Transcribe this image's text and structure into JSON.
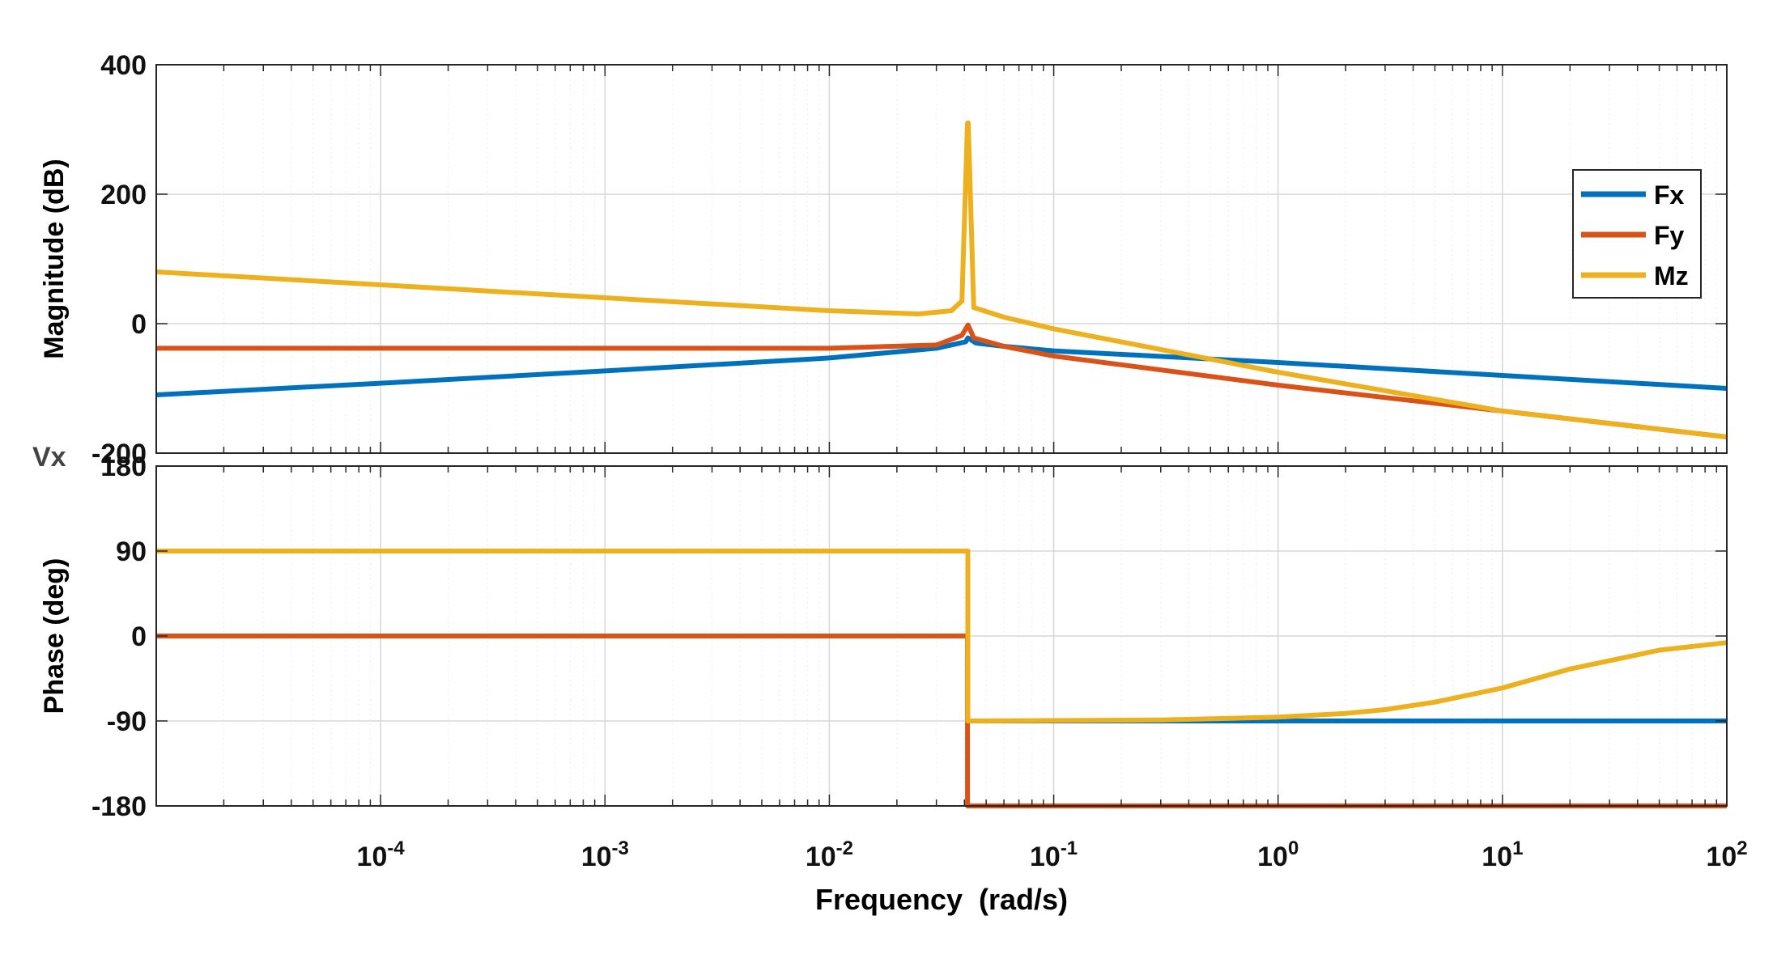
{
  "chart_data": [
    {
      "type": "line",
      "panel": "magnitude",
      "xscale": "log",
      "xlim": [
        1e-05,
        100
      ],
      "ylim": [
        -200,
        400
      ],
      "yticks": [
        400,
        200,
        0,
        -200
      ],
      "ylabel": "Magnitude (dB)",
      "grid": true,
      "legend": {
        "position": "top-right",
        "entries": [
          "Fx",
          "Fy",
          "Mz"
        ]
      },
      "series": [
        {
          "name": "Fx",
          "color": "#0072BD",
          "x": [
            1e-05,
            0.0001,
            0.001,
            0.01,
            0.03,
            0.0405,
            0.0415,
            0.045,
            0.06,
            0.1,
            1,
            10,
            100
          ],
          "y": [
            -110,
            -92,
            -73,
            -53,
            -38,
            -28,
            -22,
            -30,
            -35,
            -42,
            -60,
            -80,
            -100
          ]
        },
        {
          "name": "Fy",
          "color": "#D95319",
          "x": [
            1e-05,
            0.0001,
            0.001,
            0.01,
            0.03,
            0.039,
            0.0415,
            0.044,
            0.06,
            0.1,
            1,
            10,
            100
          ],
          "y": [
            -38,
            -38,
            -38,
            -38,
            -33,
            -18,
            -2,
            -22,
            -35,
            -50,
            -95,
            -135,
            -175
          ]
        },
        {
          "name": "Mz",
          "color": "#EDB120",
          "x": [
            1e-05,
            0.0001,
            0.001,
            0.01,
            0.025,
            0.035,
            0.039,
            0.0413,
            0.0416,
            0.044,
            0.06,
            0.1,
            1,
            10,
            100
          ],
          "y": [
            80,
            60,
            40,
            20,
            15,
            20,
            35,
            310,
            310,
            25,
            10,
            -8,
            -75,
            -135,
            -175
          ]
        }
      ]
    },
    {
      "type": "line",
      "panel": "phase",
      "xscale": "log",
      "xlim": [
        1e-05,
        100
      ],
      "ylim": [
        -180,
        180
      ],
      "yticks": [
        180,
        90,
        0,
        -90,
        -180
      ],
      "ylabel": "Phase (deg)",
      "xlabel": "Frequency  (rad/s)",
      "xticks": [
        {
          "base": "10",
          "exp": "-4",
          "value": 0.0001
        },
        {
          "base": "10",
          "exp": "-3",
          "value": 0.001
        },
        {
          "base": "10",
          "exp": "-2",
          "value": 0.01
        },
        {
          "base": "10",
          "exp": "-1",
          "value": 0.1
        },
        {
          "base": "10",
          "exp": "0",
          "value": 1
        },
        {
          "base": "10",
          "exp": "1",
          "value": 10
        },
        {
          "base": "10",
          "exp": "2",
          "value": 100
        }
      ],
      "grid": true,
      "series": [
        {
          "name": "Fx",
          "color": "#0072BD",
          "x": [
            1e-05,
            0.04141,
            0.04141,
            100
          ],
          "y": [
            90,
            90,
            -90,
            -90
          ]
        },
        {
          "name": "Fy",
          "color": "#D95319",
          "x": [
            1e-05,
            0.0413,
            0.0413,
            100
          ],
          "y": [
            0,
            0,
            -180,
            -180
          ]
        },
        {
          "name": "Mz",
          "color": "#EDB120",
          "x": [
            1e-05,
            0.04141,
            0.04141,
            0.3,
            1,
            2,
            3,
            5,
            10,
            20,
            50,
            100
          ],
          "y": [
            90,
            90,
            -90,
            -89,
            -86,
            -82,
            -78,
            -70,
            -55,
            -35,
            -15,
            -7
          ]
        }
      ]
    }
  ],
  "side_label": "Vx"
}
